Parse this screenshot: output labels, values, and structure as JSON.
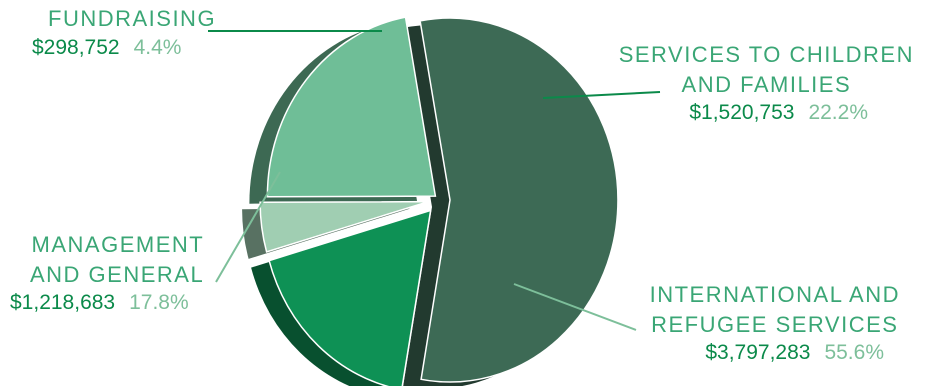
{
  "chart_data": {
    "type": "pie",
    "slices": [
      {
        "label": "FUNDRAISING",
        "amount": "$298,752",
        "percent_label": "4.4%",
        "value": 4.4,
        "color": "#a0ceb2"
      },
      {
        "label": "SERVICES TO CHILDREN\nAND FAMILIES",
        "amount": "$1,520,753",
        "percent_label": "22.2%",
        "value": 22.2,
        "color": "#6fbe97"
      },
      {
        "label": "INTERNATIONAL AND\nREFUGEE SERVICES",
        "amount": "$3,797,283",
        "percent_label": "55.6%",
        "value": 55.6,
        "color": "#3d6a55"
      },
      {
        "label": "MANAGEMENT\nAND  GENERAL",
        "amount": "$1,218,683",
        "percent_label": "17.8%",
        "value": 17.8,
        "color": "#0e9155"
      }
    ]
  }
}
